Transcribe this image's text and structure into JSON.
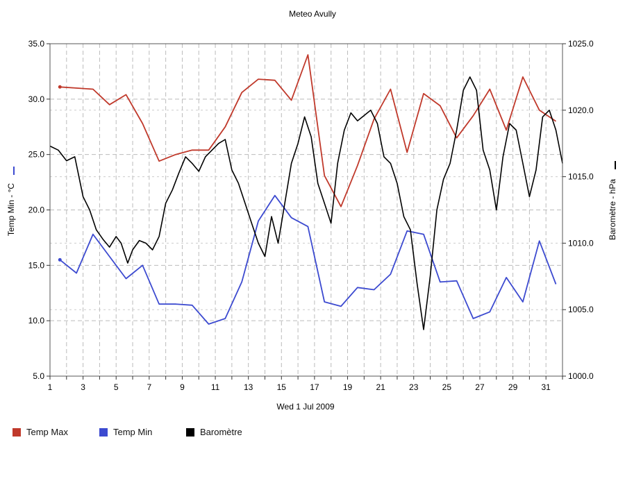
{
  "chart_data": {
    "type": "line",
    "title": "Meteo  Avully",
    "xlabel": "Wed 1 Jul 2009",
    "ylabel_left": "Temp Min - °C",
    "ylabel_right": "Baromètre - hPa",
    "xlim": [
      1,
      32
    ],
    "x_ticks": [
      1,
      3,
      5,
      7,
      9,
      11,
      13,
      15,
      17,
      19,
      21,
      23,
      25,
      27,
      29,
      31
    ],
    "ylim_left": [
      5.0,
      35.0
    ],
    "yticks_left": [
      "5.0",
      "10.0",
      "15.0",
      "20.0",
      "25.0",
      "30.0",
      "35.0"
    ],
    "ylim_right": [
      1000.0,
      1025.0
    ],
    "yticks_right": [
      "1000.0",
      "1005.0",
      "1010.0",
      "1015.0",
      "1020.0",
      "1025.0"
    ],
    "grid": true,
    "legend_position": "bottom-left",
    "series": [
      {
        "name": "Temp Max",
        "axis": "left",
        "color": "#c0392b",
        "points": [
          [
            1.6,
            31.1
          ],
          [
            3.6,
            30.9
          ],
          [
            4.6,
            29.5
          ],
          [
            5.6,
            30.4
          ],
          [
            6.6,
            27.8
          ],
          [
            7.6,
            24.4
          ],
          [
            8.6,
            25.0
          ],
          [
            9.6,
            25.4
          ],
          [
            10.6,
            25.4
          ],
          [
            11.6,
            27.5
          ],
          [
            12.6,
            30.6
          ],
          [
            13.6,
            31.8
          ],
          [
            14.6,
            31.7
          ],
          [
            15.6,
            29.9
          ],
          [
            16.6,
            34.0
          ],
          [
            17.6,
            23.1
          ],
          [
            18.6,
            20.3
          ],
          [
            19.6,
            24.0
          ],
          [
            20.6,
            28.2
          ],
          [
            21.6,
            30.9
          ],
          [
            22.6,
            25.2
          ],
          [
            23.6,
            30.5
          ],
          [
            24.6,
            29.4
          ],
          [
            25.6,
            26.5
          ],
          [
            26.6,
            28.5
          ],
          [
            27.6,
            30.9
          ],
          [
            28.6,
            27.2
          ],
          [
            29.6,
            32.0
          ],
          [
            30.6,
            29.0
          ],
          [
            31.6,
            28.0
          ]
        ]
      },
      {
        "name": "Temp Min",
        "axis": "left",
        "color": "#3c4ad0",
        "points": [
          [
            1.6,
            15.5
          ],
          [
            2.6,
            14.3
          ],
          [
            3.6,
            17.8
          ],
          [
            4.6,
            15.8
          ],
          [
            5.6,
            13.8
          ],
          [
            6.6,
            15.0
          ],
          [
            7.6,
            11.5
          ],
          [
            8.6,
            11.5
          ],
          [
            9.6,
            11.4
          ],
          [
            10.6,
            9.7
          ],
          [
            11.6,
            10.2
          ],
          [
            12.6,
            13.5
          ],
          [
            13.6,
            19.0
          ],
          [
            14.6,
            21.3
          ],
          [
            15.6,
            19.3
          ],
          [
            16.6,
            18.5
          ],
          [
            17.6,
            11.7
          ],
          [
            18.6,
            11.3
          ],
          [
            19.6,
            13.0
          ],
          [
            20.6,
            12.8
          ],
          [
            21.6,
            14.2
          ],
          [
            22.6,
            18.1
          ],
          [
            23.6,
            17.8
          ],
          [
            24.6,
            13.5
          ],
          [
            25.6,
            13.6
          ],
          [
            26.6,
            10.2
          ],
          [
            27.6,
            10.8
          ],
          [
            28.6,
            13.9
          ],
          [
            29.6,
            11.7
          ],
          [
            30.6,
            17.2
          ],
          [
            31.6,
            13.3
          ]
        ]
      },
      {
        "name": "Baromètre",
        "axis": "right",
        "color": "#000000",
        "points": [
          [
            1.0,
            1017.3
          ],
          [
            1.5,
            1017.0
          ],
          [
            2.0,
            1016.2
          ],
          [
            2.5,
            1016.5
          ],
          [
            3.0,
            1013.5
          ],
          [
            3.4,
            1012.5
          ],
          [
            3.8,
            1011.0
          ],
          [
            4.2,
            1010.3
          ],
          [
            4.6,
            1009.7
          ],
          [
            5.0,
            1010.5
          ],
          [
            5.3,
            1010.0
          ],
          [
            5.7,
            1008.5
          ],
          [
            6.0,
            1009.5
          ],
          [
            6.4,
            1010.2
          ],
          [
            6.8,
            1010.0
          ],
          [
            7.2,
            1009.5
          ],
          [
            7.6,
            1010.5
          ],
          [
            8.0,
            1013.0
          ],
          [
            8.4,
            1014.0
          ],
          [
            8.8,
            1015.3
          ],
          [
            9.2,
            1016.5
          ],
          [
            9.6,
            1016.0
          ],
          [
            10.0,
            1015.4
          ],
          [
            10.4,
            1016.5
          ],
          [
            10.8,
            1017.0
          ],
          [
            11.2,
            1017.5
          ],
          [
            11.6,
            1017.8
          ],
          [
            12.0,
            1015.5
          ],
          [
            12.4,
            1014.5
          ],
          [
            12.8,
            1013.0
          ],
          [
            13.2,
            1011.5
          ],
          [
            13.6,
            1010.0
          ],
          [
            14.0,
            1009.0
          ],
          [
            14.4,
            1012.0
          ],
          [
            14.8,
            1010.0
          ],
          [
            15.2,
            1013.0
          ],
          [
            15.6,
            1016.0
          ],
          [
            16.0,
            1017.5
          ],
          [
            16.4,
            1019.5
          ],
          [
            16.8,
            1018.0
          ],
          [
            17.2,
            1014.5
          ],
          [
            17.6,
            1013.0
          ],
          [
            18.0,
            1011.5
          ],
          [
            18.4,
            1016.0
          ],
          [
            18.8,
            1018.5
          ],
          [
            19.2,
            1019.8
          ],
          [
            19.6,
            1019.2
          ],
          [
            20.0,
            1019.6
          ],
          [
            20.4,
            1020.0
          ],
          [
            20.8,
            1019.0
          ],
          [
            21.2,
            1016.5
          ],
          [
            21.6,
            1016.0
          ],
          [
            22.0,
            1014.5
          ],
          [
            22.4,
            1012.0
          ],
          [
            22.8,
            1011.0
          ],
          [
            23.2,
            1007.0
          ],
          [
            23.6,
            1003.5
          ],
          [
            24.0,
            1007.5
          ],
          [
            24.4,
            1012.5
          ],
          [
            24.8,
            1014.8
          ],
          [
            25.2,
            1016.0
          ],
          [
            25.6,
            1018.5
          ],
          [
            26.0,
            1021.5
          ],
          [
            26.4,
            1022.5
          ],
          [
            26.8,
            1021.5
          ],
          [
            27.2,
            1017.0
          ],
          [
            27.6,
            1015.5
          ],
          [
            28.0,
            1012.5
          ],
          [
            28.4,
            1016.5
          ],
          [
            28.8,
            1019.0
          ],
          [
            29.2,
            1018.5
          ],
          [
            29.6,
            1016.0
          ],
          [
            30.0,
            1013.5
          ],
          [
            30.4,
            1015.5
          ],
          [
            30.8,
            1019.5
          ],
          [
            31.2,
            1020.0
          ],
          [
            31.6,
            1018.5
          ],
          [
            32.0,
            1016.0
          ]
        ]
      }
    ]
  },
  "legend": [
    {
      "label": "Temp Max",
      "color": "#c0392b"
    },
    {
      "label": "Temp Min",
      "color": "#3c4ad0"
    },
    {
      "label": "Baromètre",
      "color": "#000000"
    }
  ]
}
